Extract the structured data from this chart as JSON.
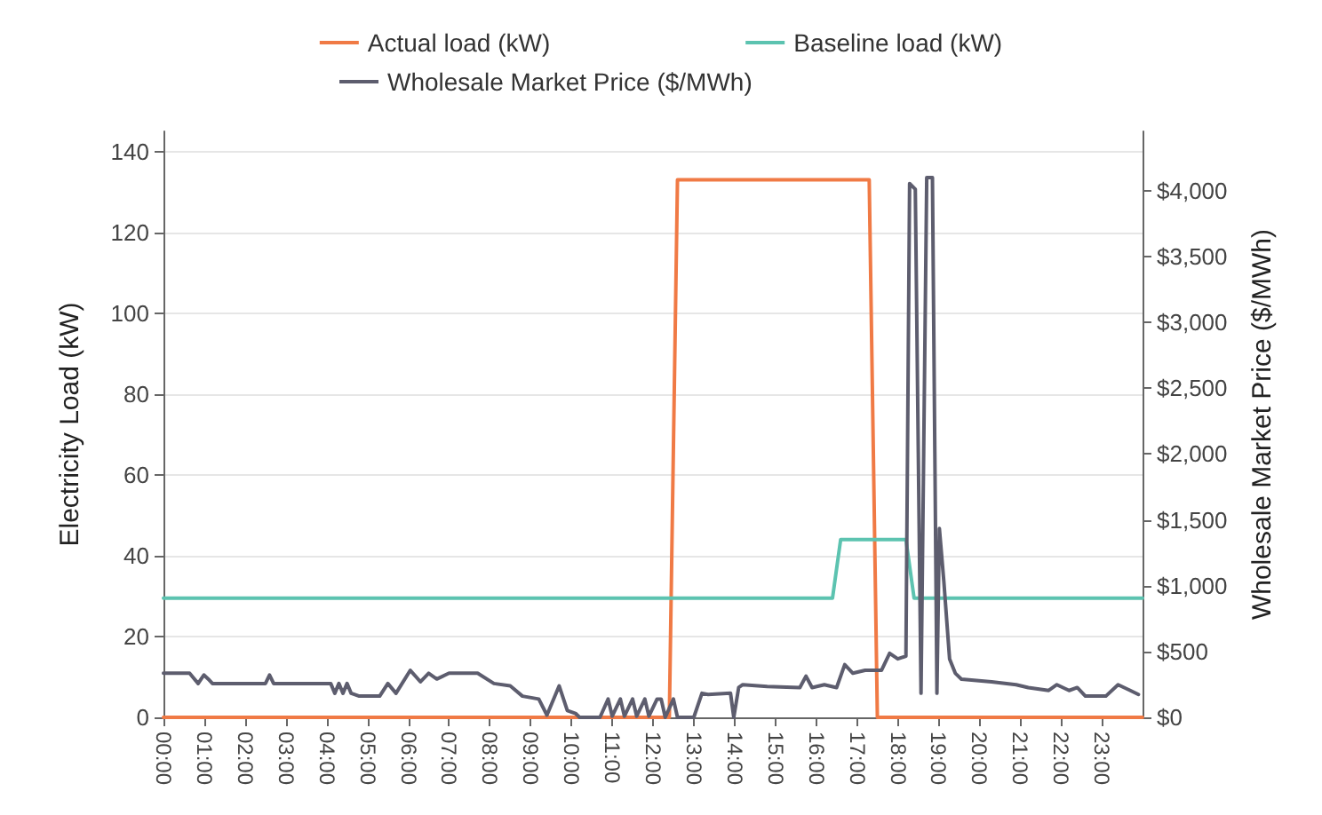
{
  "chart_data": {
    "type": "line",
    "ylabel": "Electricity Load (kW)",
    "y2label": "Wholesale Market Price ($/MWh)",
    "xlim": [
      0,
      24
    ],
    "xticks": [
      {
        "value": 0,
        "label": "00:00"
      },
      {
        "value": 1,
        "label": "01:00"
      },
      {
        "value": 2,
        "label": "02:00"
      },
      {
        "value": 3,
        "label": "03:00"
      },
      {
        "value": 4,
        "label": "04:00"
      },
      {
        "value": 5,
        "label": "05:00"
      },
      {
        "value": 6,
        "label": "06:00"
      },
      {
        "value": 7,
        "label": "07:00"
      },
      {
        "value": 8,
        "label": "08:00"
      },
      {
        "value": 9,
        "label": "09:00"
      },
      {
        "value": 10,
        "label": "10:00"
      },
      {
        "value": 11,
        "label": "11:00"
      },
      {
        "value": 12,
        "label": "12:00"
      },
      {
        "value": 13,
        "label": "13:00"
      },
      {
        "value": 14,
        "label": "14:00"
      },
      {
        "value": 15,
        "label": "15:00"
      },
      {
        "value": 16,
        "label": "16:00"
      },
      {
        "value": 17,
        "label": "17:00"
      },
      {
        "value": 18,
        "label": "18:00"
      },
      {
        "value": 19,
        "label": "19:00"
      },
      {
        "value": 20,
        "label": "20:00"
      },
      {
        "value": 21,
        "label": "21:00"
      },
      {
        "value": 22,
        "label": "22:00"
      },
      {
        "value": 23,
        "label": "23:00"
      }
    ],
    "ylim": [
      0,
      145
    ],
    "yticks": [
      0,
      20,
      40,
      60,
      80,
      100,
      120,
      140
    ],
    "y2lim": [
      0,
      4450
    ],
    "y2ticks": [
      {
        "value": 0,
        "label": "$0"
      },
      {
        "value": 500,
        "label": "$500"
      },
      {
        "value": 1000,
        "label": "$1,000"
      },
      {
        "value": 1500,
        "label": "$1,500"
      },
      {
        "value": 2000,
        "label": "$2,000"
      },
      {
        "value": 2500,
        "label": "$2,500"
      },
      {
        "value": 3000,
        "label": "$3,000"
      },
      {
        "value": 3500,
        "label": "$3,500"
      },
      {
        "value": 4000,
        "label": "$4,000"
      }
    ],
    "grid": "y",
    "legend": "top",
    "marker": "none",
    "line_style": "solid",
    "series": [
      {
        "name": "Actual load (kW)",
        "color": "#f07a45",
        "x": [
          0,
          12.4,
          12.6,
          13,
          14,
          15,
          16,
          17,
          17.3,
          17.5,
          18,
          20,
          22,
          24
        ],
        "values": [
          0,
          0,
          133,
          133,
          133,
          133,
          133,
          133,
          133,
          0,
          0,
          0,
          0,
          0
        ]
      },
      {
        "name": "Baseline load (kW)",
        "color": "#5cc3b0",
        "x": [
          0,
          16.4,
          16.6,
          18.2,
          18.4,
          24
        ],
        "values": [
          29.5,
          29.5,
          44,
          44,
          29.5,
          29.5
        ]
      },
      {
        "name": "Wholesale Market Price ($/MWh)",
        "color": "#5d5d6e",
        "axis": "y2",
        "x": [
          0,
          0.64,
          0.85,
          0.99,
          1.1,
          1.2,
          2.5,
          2.6,
          2.7,
          4.1,
          4.2,
          4.3,
          4.4,
          4.5,
          4.6,
          4.8,
          5.3,
          5.5,
          5.7,
          6.05,
          6.3,
          6.5,
          6.7,
          7.0,
          7.7,
          8.1,
          8.5,
          8.8,
          9.2,
          9.4,
          9.7,
          9.9,
          10.1,
          10.2,
          10.7,
          10.9,
          11.0,
          11.2,
          11.3,
          11.5,
          11.6,
          11.8,
          11.9,
          12.1,
          12.2,
          12.3,
          12.5,
          12.6,
          13.0,
          13.2,
          13.35,
          13.9,
          13.98,
          14.1,
          14.2,
          14.8,
          15.6,
          15.75,
          15.9,
          16.2,
          16.5,
          16.7,
          16.9,
          17.2,
          17.6,
          17.8,
          18.0,
          18.2,
          18.29,
          18.43,
          18.57,
          18.71,
          18.85,
          18.96,
          19.02,
          19.13,
          19.27,
          19.41,
          19.56,
          20.3,
          20.9,
          21.2,
          21.7,
          21.9,
          22.2,
          22.4,
          22.6,
          23.1,
          23.4,
          23.7,
          23.9
        ],
        "values": [
          335,
          335,
          257,
          322,
          290,
          257,
          257,
          322,
          257,
          257,
          183,
          257,
          183,
          257,
          183,
          161,
          161,
          257,
          183,
          357,
          270,
          335,
          291,
          335,
          335,
          257,
          239,
          161,
          139,
          17,
          239,
          52,
          30,
          0,
          0,
          139,
          9,
          139,
          9,
          139,
          9,
          139,
          9,
          139,
          139,
          0,
          139,
          0,
          0,
          183,
          174,
          183,
          0,
          226,
          248,
          235,
          226,
          313,
          226,
          248,
          226,
          400,
          335,
          357,
          357,
          487,
          444,
          465,
          4054,
          4011,
          183,
          4100,
          4100,
          183,
          1435,
          1030,
          444,
          335,
          290,
          270,
          248,
          226,
          204,
          248,
          204,
          226,
          161,
          161,
          248,
          204,
          174
        ]
      }
    ]
  }
}
